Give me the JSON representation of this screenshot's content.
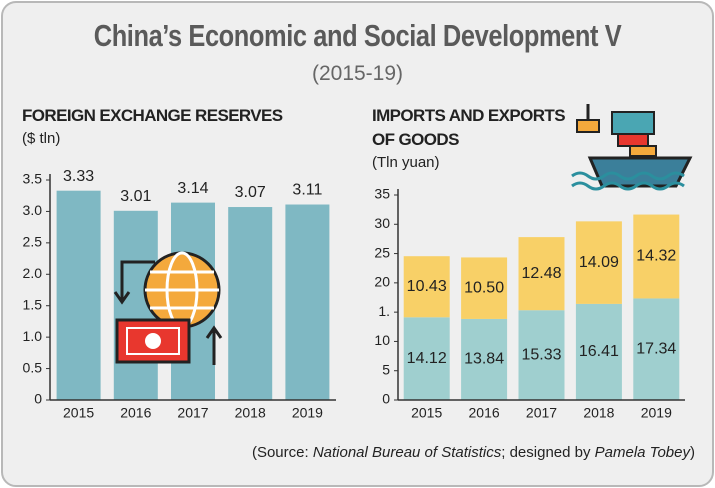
{
  "header": {
    "title": "China’s Economic and Social Development V",
    "subtitle": "(2015-19)"
  },
  "source": [
    "(Source: ",
    "National Bureau of Statistics",
    "; designed by ",
    "Pamela Tobey",
    ")"
  ],
  "chart_data": [
    {
      "type": "bar",
      "title": "FOREIGN EXCHANGE RESERVES",
      "unit": "($ tln)",
      "categories": [
        "2015",
        "2016",
        "2017",
        "2018",
        "2019"
      ],
      "values": [
        3.33,
        3.01,
        3.14,
        3.07,
        3.11
      ],
      "color": "#7fb8c3",
      "ylim": [
        0,
        3.5
      ],
      "yticks": [
        0,
        0.5,
        {
          "value": 1,
          "label": "1.0"
        },
        1.5,
        {
          "value": 2,
          "label": "2.0"
        },
        2.5,
        {
          "value": 3,
          "label": "3.0"
        },
        3.5
      ]
    },
    {
      "type": "stacked_bar",
      "title": "IMPORTS AND EXPORTS OF GOODS",
      "unit": "(Tln yuan)",
      "categories": [
        "2015",
        "2016",
        "2017",
        "2018",
        "2019"
      ],
      "series": [
        {
          "color": "#9fcfcf",
          "values": [
            14.12,
            13.84,
            15.33,
            16.41,
            17.34
          ],
          "value_labels": [
            "14.12",
            "13.84",
            "15.33",
            "16.41",
            "17.34"
          ]
        },
        {
          "color": "#f8d067",
          "values": [
            10.43,
            10.5,
            12.48,
            14.09,
            14.32
          ],
          "value_labels": [
            "10.43",
            "10.50",
            "12.48",
            "14.09",
            "14.32"
          ]
        }
      ],
      "ylim": [
        0,
        35
      ],
      "yticks": [
        0,
        5,
        10,
        {
          "value": 15,
          "label": "1."
        },
        20,
        25,
        30,
        35
      ]
    }
  ]
}
